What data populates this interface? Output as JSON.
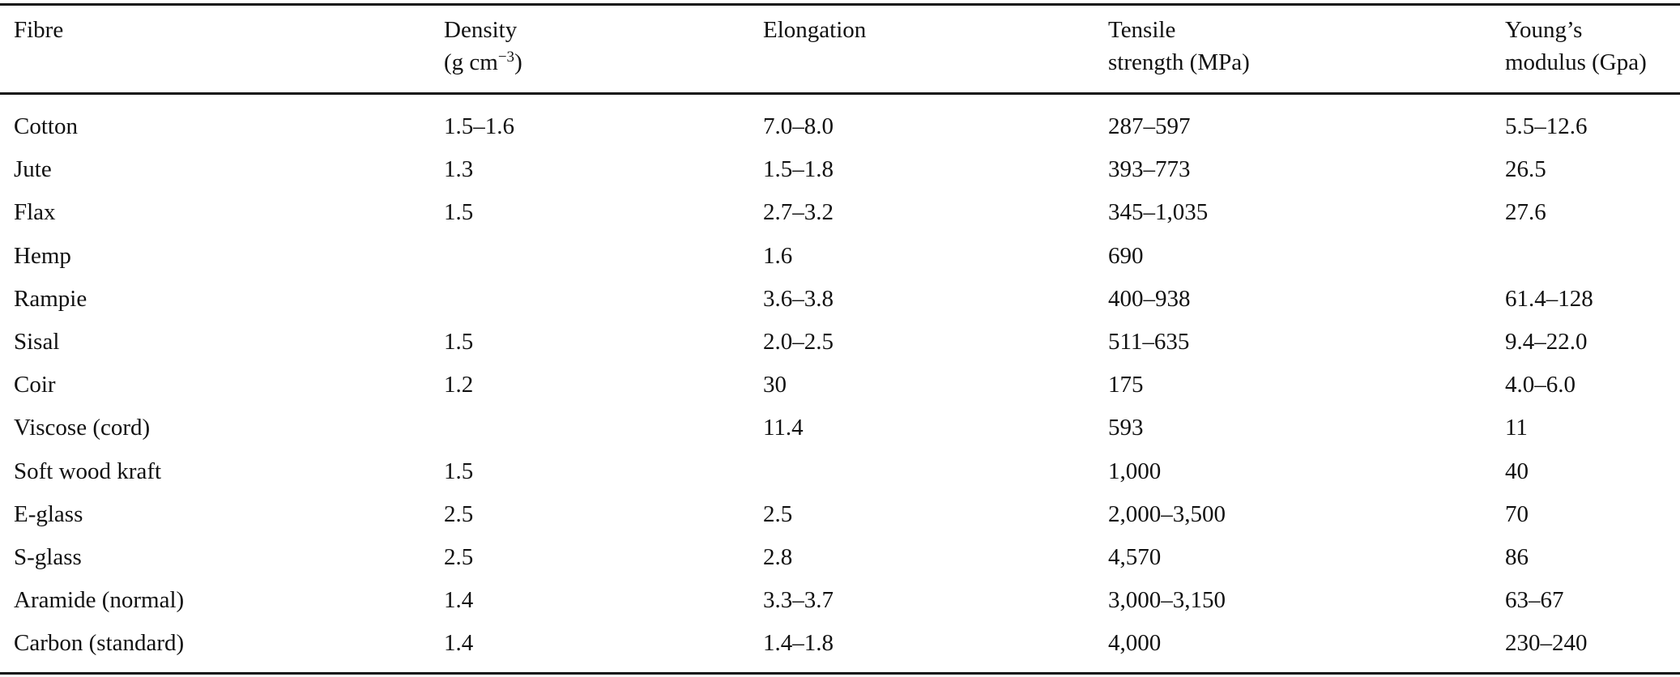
{
  "table": {
    "header": [
      {
        "lines": [
          "Fibre"
        ]
      },
      {
        "lines": [
          "Density"
        ],
        "unit": "(g cm",
        "unit_sup": "−3",
        "unit_end": ")"
      },
      {
        "lines": [
          "Elongation"
        ]
      },
      {
        "lines": [
          "Tensile",
          "strength (MPa)"
        ]
      },
      {
        "lines": [
          "Young’s",
          "modulus (Gpa)"
        ]
      }
    ],
    "rows": [
      [
        "Cotton",
        "1.5–1.6",
        "7.0–8.0",
        "287–597",
        "5.5–12.6"
      ],
      [
        "Jute",
        "1.3",
        "1.5–1.8",
        "393–773",
        "26.5"
      ],
      [
        "Flax",
        "1.5",
        "2.7–3.2",
        "345–1,035",
        "27.6"
      ],
      [
        "Hemp",
        null,
        "1.6",
        "690",
        null
      ],
      [
        "Rampie",
        null,
        "3.6–3.8",
        "400–938",
        "61.4–128"
      ],
      [
        "Sisal",
        "1.5",
        "2.0–2.5",
        "511–635",
        "9.4–22.0"
      ],
      [
        "Coir",
        "1.2",
        "30",
        "175",
        "4.0–6.0"
      ],
      [
        "Viscose (cord)",
        null,
        "11.4",
        "593",
        "11"
      ],
      [
        "Soft wood kraft",
        "1.5",
        null,
        "1,000",
        "40"
      ],
      [
        "E-glass",
        "2.5",
        "2.5",
        "2,000–3,500",
        "70"
      ],
      [
        "S-glass",
        "2.5",
        "2.8",
        "4,570",
        "86"
      ],
      [
        "Aramide (normal)",
        "1.4",
        "3.3–3.7",
        "3,000–3,150",
        "63–67"
      ],
      [
        "Carbon (standard)",
        "1.4",
        "1.4–1.8",
        "4,000",
        "230–240"
      ]
    ]
  }
}
